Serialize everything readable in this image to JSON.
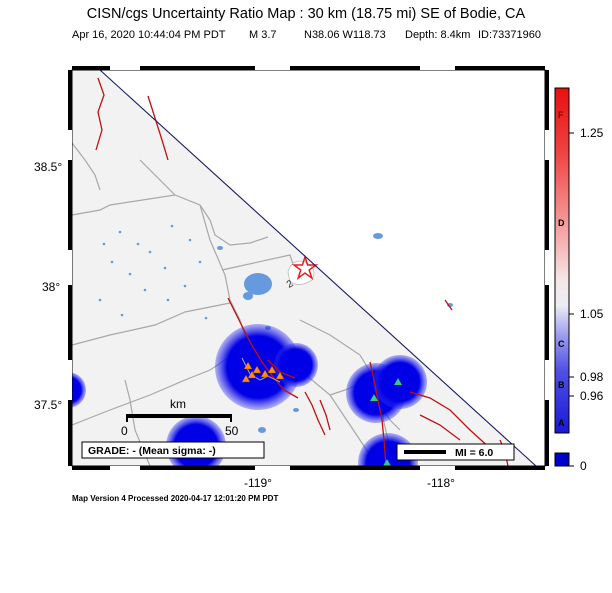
{
  "header": {
    "title": "CISN/cgs Uncertainty Ratio Map : 30 km (18.75 mi) SE of Bodie, CA",
    "date": "Apr 16, 2020 10:44:04 PM PDT",
    "magnitude": "M 3.7",
    "location": "N38.06 W118.73",
    "depth": "Depth: 8.4km",
    "event_id": "ID:73371960"
  },
  "axes": {
    "lat_ticks": [
      "38.5°",
      "38°",
      "37.5°"
    ],
    "lon_ticks": [
      "-119°",
      "-118°"
    ]
  },
  "scale_bar": {
    "unit": "km",
    "min": "0",
    "max": "50"
  },
  "grade": "GRADE: - (Mean sigma: -)",
  "mi_legend": "MI = 6.0",
  "colorbar": {
    "letters": [
      "F",
      "D",
      "C",
      "B",
      "A"
    ],
    "values": [
      "1.25",
      "1.05",
      "0.98",
      "0.96",
      "0"
    ],
    "top_color": "#e01010",
    "mid_color": "#f7eaea",
    "low_color": "#2020dd",
    "bottom_color": "#0000cc"
  },
  "map": {
    "background": "#f2f2f2",
    "no_data_color": "#ffffff",
    "fault_color": "#c01010",
    "border_color": "#a8a8a8",
    "water_color": "#6699dd",
    "uncertainty_color": "#0000e0",
    "epicenter_color": "#e02020"
  },
  "footer": "Map Version 4 Processed 2020-04-17 12:01:20 PM PDT"
}
